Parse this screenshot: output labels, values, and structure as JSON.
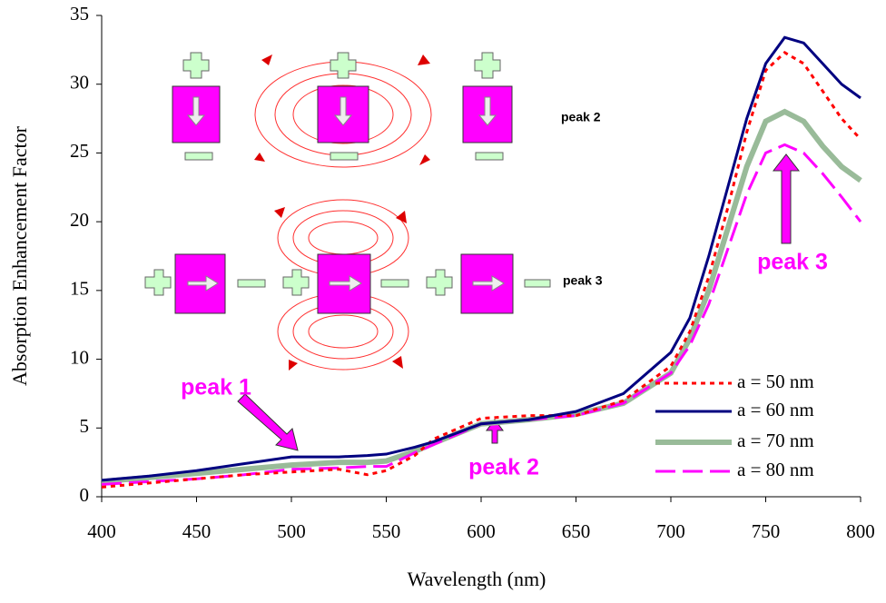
{
  "chart_data": {
    "type": "line",
    "xlabel": "Wavelength (nm)",
    "ylabel": "Absorption Enhancement Factor",
    "x": [
      400,
      425,
      450,
      475,
      500,
      525,
      540,
      550,
      565,
      575,
      600,
      625,
      650,
      675,
      700,
      710,
      720,
      730,
      740,
      750,
      760,
      770,
      780,
      790,
      800
    ],
    "series": [
      {
        "name": "a = 50 nm",
        "color": "#ff0000",
        "style": "dotted",
        "values": [
          0.7,
          1.0,
          1.3,
          1.6,
          1.8,
          2.0,
          1.6,
          1.9,
          3.0,
          4.2,
          5.7,
          5.9,
          5.9,
          7.0,
          9.5,
          12,
          16,
          21,
          26.5,
          31,
          32.3,
          31.5,
          29.5,
          27.5,
          26
        ]
      },
      {
        "name": "a = 60 nm",
        "color": "#000080",
        "style": "solid",
        "values": [
          1.2,
          1.5,
          1.9,
          2.4,
          2.9,
          2.9,
          3.0,
          3.1,
          3.6,
          4.0,
          5.3,
          5.6,
          6.2,
          7.5,
          10.5,
          13,
          17.5,
          22.5,
          27.5,
          31.5,
          33.4,
          33,
          31.5,
          30,
          29
        ]
      },
      {
        "name": "a = 70 nm",
        "color": "#99bb99",
        "style": "thick",
        "values": [
          1.1,
          1.4,
          1.7,
          2.0,
          2.3,
          2.5,
          2.5,
          2.6,
          3.3,
          3.9,
          5.3,
          5.6,
          6.0,
          6.8,
          9,
          11.5,
          15,
          19.5,
          24,
          27.3,
          28,
          27.3,
          25.5,
          24,
          23
        ]
      },
      {
        "name": "a = 80 nm",
        "color": "#ff00ff",
        "style": "dashed",
        "values": [
          0.9,
          1.1,
          1.3,
          1.6,
          2.0,
          2.1,
          2.2,
          2.2,
          3.2,
          3.8,
          5.3,
          5.6,
          5.9,
          6.8,
          9,
          11,
          14,
          18,
          22,
          25,
          25.6,
          25,
          23.5,
          21.8,
          20
        ]
      }
    ],
    "xlim": [
      400,
      800
    ],
    "xticks": [
      400,
      450,
      500,
      550,
      600,
      650,
      700,
      750,
      800
    ],
    "ylim": [
      0,
      35
    ],
    "yticks": [
      0,
      5,
      10,
      15,
      20,
      25,
      30,
      35
    ],
    "annotations": [
      "peak 1",
      "peak 2",
      "peak 3"
    ],
    "inset_labels": [
      "peak 2",
      "peak 3"
    ]
  }
}
